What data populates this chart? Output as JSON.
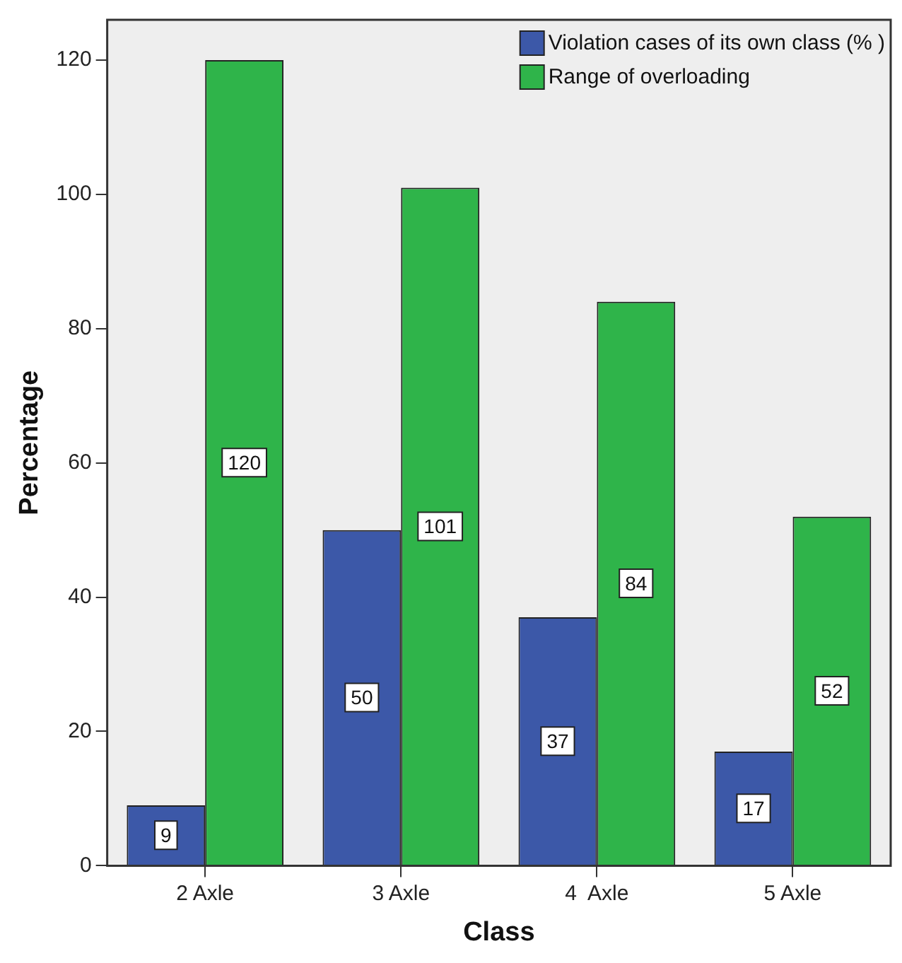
{
  "chart_data": {
    "type": "bar",
    "xlabel": "Class",
    "ylabel": "Percentage",
    "categories": [
      "2 Axle",
      "3 Axle",
      "4  Axle",
      "5 Axle"
    ],
    "series": [
      {
        "name": "Violation cases of its own class (% )",
        "color": "#3c58a8",
        "values": [
          9,
          50,
          37,
          17
        ]
      },
      {
        "name": "Range of overloading",
        "color": "#2fb44a",
        "values": [
          120,
          101,
          84,
          52
        ]
      }
    ],
    "ylim": [
      0,
      126
    ],
    "yticks": [
      0,
      20,
      40,
      60,
      80,
      100,
      120
    ],
    "grid": false,
    "legend": "top right",
    "data_labels": true
  }
}
